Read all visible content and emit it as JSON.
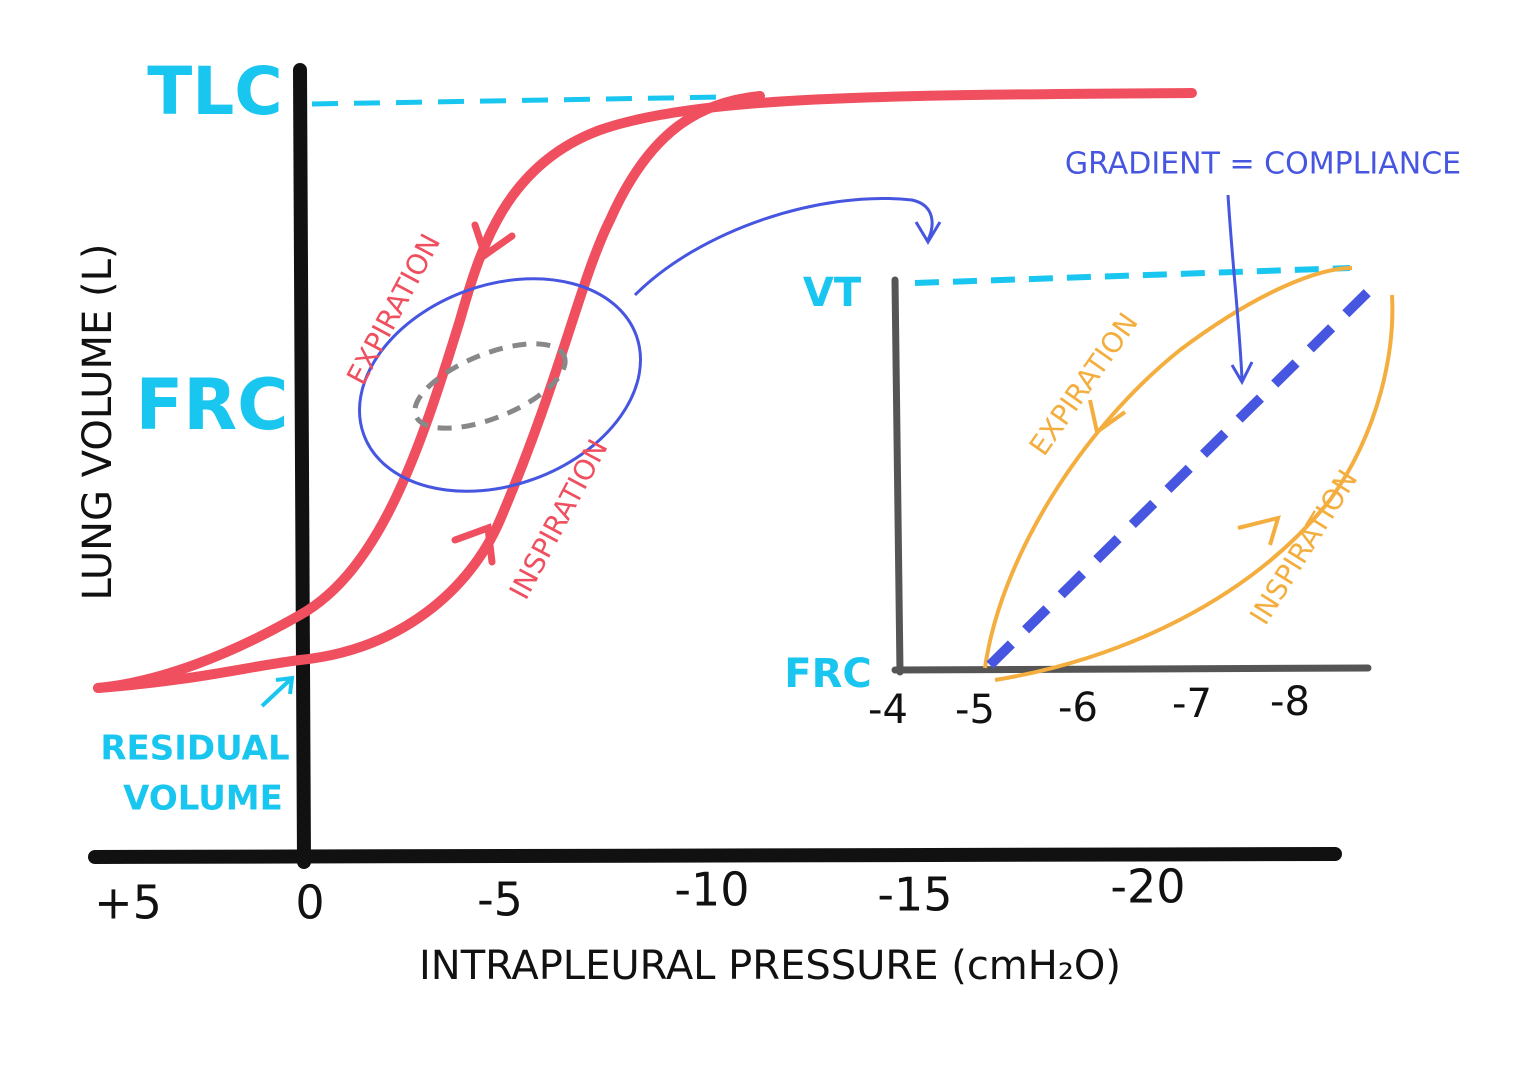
{
  "main_graph": {
    "y_axis_title": "LUNG VOLUME (L)",
    "y_labels": [
      "TLC",
      "FRC"
    ],
    "expiration_label": "EXPIRATION",
    "inspiration_label": "INSPIRATION",
    "residual_volume_label": [
      "RESIDUAL",
      "VOLUME"
    ],
    "x_tick_labels": [
      "+5",
      "0",
      "-5",
      "-10",
      "-15",
      "-20"
    ],
    "x_axis_title": "INTRAPLEURAL PRESSURE (cmH₂O)"
  },
  "inset": {
    "y_labels": [
      "VT",
      "FRC"
    ],
    "x_tick_labels": [
      "-4",
      "-5",
      "-6",
      "-7",
      "-8"
    ],
    "expiration_label": "EXPIRATION",
    "inspiration_label": "INSPIRATION"
  },
  "gradient_note": "GRADIENT = COMPLIANCE"
}
